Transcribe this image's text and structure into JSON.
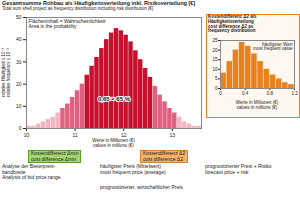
{
  "chart_data": [
    {
      "type": "histogram",
      "title": "Gesamtsumme Rohbau als Häufigkeitsverteilung inkl. Risikoverteilung [€]",
      "subtitle": "Total sum shell project as frequency distribution including risk distribution [€]",
      "x_label": "Werte in Millionen (€)\nvalues in millions (€)",
      "y_label": "relative Häufigkeit x 10⁻³\nrelative frequency x 10⁻³",
      "bins": [
        10,
        10.1,
        10.2,
        10.3,
        10.4,
        10.5,
        10.6,
        10.7,
        10.8,
        10.9,
        11,
        11.1,
        11.2,
        11.3,
        11.4,
        11.5,
        11.6,
        11.7,
        11.8,
        11.9,
        12,
        12.1,
        12.2,
        12.3,
        12.4,
        12.5,
        12.6,
        12.7,
        12.8,
        12.9,
        13,
        13.1,
        13.2,
        13.3,
        13.4,
        13.5,
        13.6
      ],
      "values": [
        1,
        1,
        2,
        3,
        4,
        5,
        7,
        9,
        11,
        14,
        17,
        20,
        24,
        28,
        32,
        36,
        40,
        43,
        45,
        44,
        42,
        39,
        35,
        31,
        27,
        23,
        19,
        15,
        12,
        9,
        7,
        5,
        3,
        2,
        1,
        1
      ],
      "colors": [
        "#f2b6c3",
        "#f2b6c3",
        "#f2b6c3",
        "#f2b6c3",
        "#f2b6c3",
        "#f2b6c3",
        "#f2b6c3",
        "#e0607e",
        "#e0607e",
        "#e0607e",
        "#e0607e",
        "#e0607e",
        "#c8102e",
        "#c8102e",
        "#c8102e",
        "#c8102e",
        "#c8102e",
        "#c8102e",
        "#c8102e",
        "#c8102e",
        "#c8102e",
        "#c8102e",
        "#c8102e",
        "#c8102e",
        "#c8102e",
        "#c8102e",
        "#e0607e",
        "#e0607e",
        "#e0607e",
        "#e0607e",
        "#e0607e",
        "#f2b6c3",
        "#f2b6c3",
        "#f2b6c3",
        "#f2b6c3",
        "#f2b6c3"
      ],
      "xlim": [
        10,
        13.6
      ],
      "xticks": [
        10,
        11,
        12,
        13
      ],
      "ylim": [
        0,
        50
      ],
      "yticks": [
        0,
        10,
        20,
        30,
        40,
        50
      ],
      "grid": false,
      "annotations": [
        "Flächeninhalt = Wahrscheinlichkeit\nArea is the probability",
        "0,65 ≈ 65 %",
        "Kostendifferenz Δmin\ncost difference Δmin",
        "Kostendifferenz Δ2\ncost difference Δ2",
        "häufigster Preis (Mittelwert)\nmost frequent price (average)",
        "prognostizierter Preis + Risiko\nforecast price + risk",
        "prognostizierter, wirtschaftlicher Preis",
        "Analyse der Bieterpreis-\nbandbreite\nAnalysis of bid price range"
      ]
    },
    {
      "type": "histogram",
      "title": "Kostendifferenz Δ2 als\nHäufigkeitsverteilung\ncost difference Δ2 as\nfrequency distribution",
      "x_label": "Werte in Millionen (€)\nvalues in millions (€)",
      "bins": [
        0,
        0.1,
        0.2,
        0.3,
        0.4,
        0.5,
        0.6,
        0.7,
        0.8,
        0.9,
        1,
        1.1,
        1.2
      ],
      "values": [
        8,
        14,
        20,
        24,
        22,
        18,
        14,
        10,
        7,
        5,
        3,
        2
      ],
      "color": "#e8821e",
      "xlim": [
        0,
        1.2
      ],
      "xticks": [
        0,
        0.4,
        0.8,
        1.2
      ],
      "ylim": [
        0,
        25
      ],
      "yticks": [
        0,
        5,
        10,
        15,
        20,
        25
      ],
      "grid": false,
      "annotations": [
        "häufigster Wert\nmost frequent value"
      ]
    }
  ]
}
